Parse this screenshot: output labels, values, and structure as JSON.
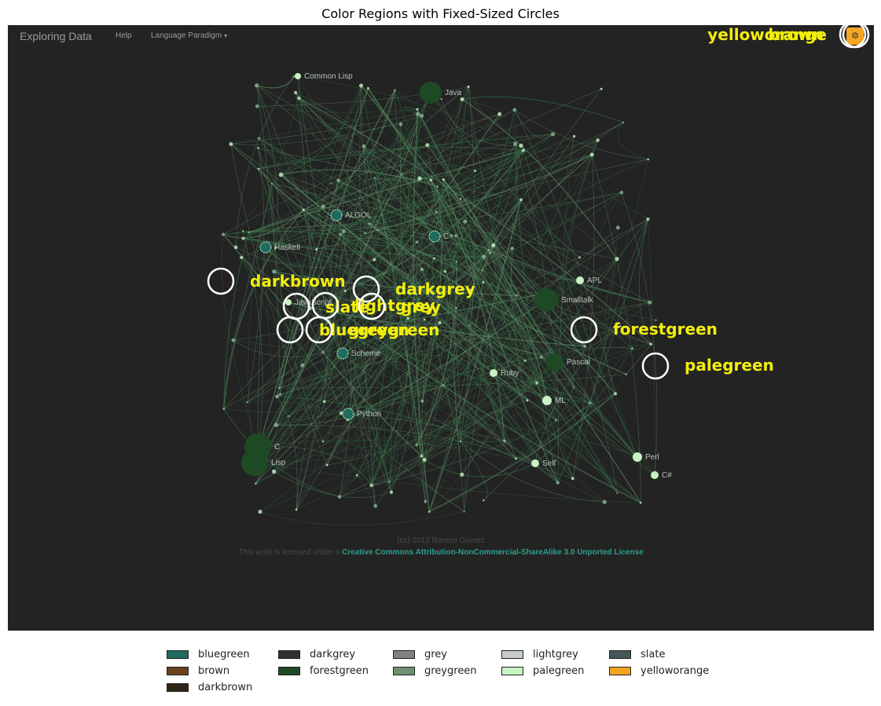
{
  "figure_title": "Color Regions with Fixed-Sized Circles",
  "app": {
    "brand": "Exploring Data",
    "nav": {
      "help": "Help",
      "language_paradigm": "Language Paradigm"
    },
    "settings_icon": "gear-icon"
  },
  "graph_nodes": [
    {
      "label": "Common Lisp",
      "kind": "pale"
    },
    {
      "label": "Java",
      "kind": "forest"
    },
    {
      "label": "ALGOL",
      "kind": "teal"
    },
    {
      "label": "C++",
      "kind": "teal"
    },
    {
      "label": "Haskell",
      "kind": "teal"
    },
    {
      "label": "APL",
      "kind": "pale"
    },
    {
      "label": "Smalltalk",
      "kind": "forest"
    },
    {
      "label": "JavaScript",
      "kind": "pale"
    },
    {
      "label": "Scheme",
      "kind": "teal"
    },
    {
      "label": "Pascal",
      "kind": "forest"
    },
    {
      "label": "Ruby",
      "kind": "pale"
    },
    {
      "label": "ML",
      "kind": "pale"
    },
    {
      "label": "Python",
      "kind": "teal"
    },
    {
      "label": "C",
      "kind": "forest"
    },
    {
      "label": "Lisp",
      "kind": "forest"
    },
    {
      "label": "Self",
      "kind": "pale"
    },
    {
      "label": "Perl",
      "kind": "pale"
    },
    {
      "label": "C#",
      "kind": "pale"
    }
  ],
  "footer": {
    "copyright": "(cc) 2012 Ramiro Gómez",
    "license_prefix": "This work is licensed under a",
    "license_link": "Creative Commons Attribution-NonCommercial-ShareAlike 3.0 Unported License"
  },
  "markers": [
    {
      "label": "yelloworange"
    },
    {
      "label": "brown"
    },
    {
      "label": "darkbrown"
    },
    {
      "label": "darkgrey"
    },
    {
      "label": "slate"
    },
    {
      "label": "lightgrey"
    },
    {
      "label": "grey"
    },
    {
      "label": "bluegreen"
    },
    {
      "label": "greygreen"
    },
    {
      "label": "forestgreen"
    },
    {
      "label": "palegreen"
    }
  ],
  "legend": [
    {
      "label": "bluegreen",
      "color": "#1f6b60"
    },
    {
      "label": "brown",
      "color": "#6b4220"
    },
    {
      "label": "darkbrown",
      "color": "#2e2418"
    },
    {
      "label": "darkgrey",
      "color": "#2f3130"
    },
    {
      "label": "forestgreen",
      "color": "#1d4a25"
    },
    {
      "label": "grey",
      "color": "#7f837e"
    },
    {
      "label": "greygreen",
      "color": "#6f8f70"
    },
    {
      "label": "lightgrey",
      "color": "#c5ccc6"
    },
    {
      "label": "palegreen",
      "color": "#c8f2c3"
    },
    {
      "label": "slate",
      "color": "#44575a"
    },
    {
      "label": "yelloworange",
      "color": "#f2a51c"
    }
  ],
  "colors": {
    "screenshot_bg": "#232323",
    "marker_text": "#f2ee0c",
    "marker_ring": "#ffffff"
  }
}
